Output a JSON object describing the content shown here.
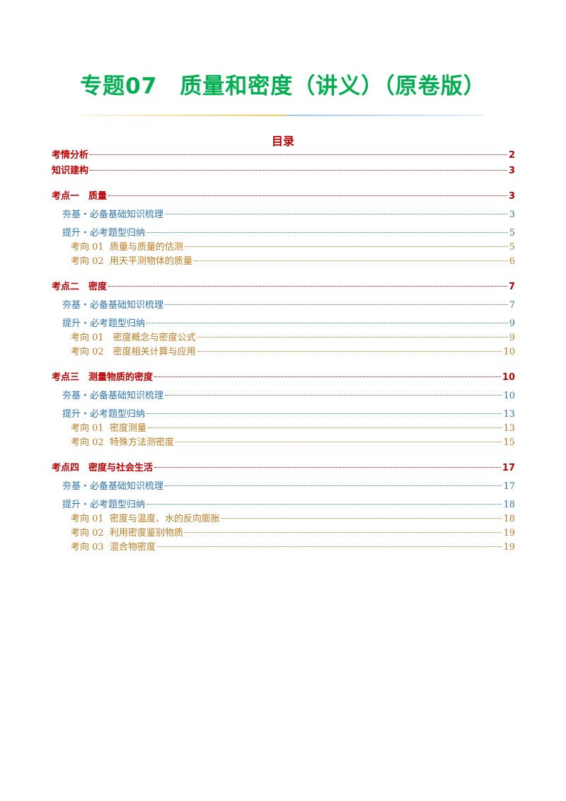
{
  "title": "专题07　质量和密度（讲义）（原卷版）",
  "toc": {
    "heading": "目录",
    "overview": [
      {
        "text": "考情分析",
        "page": "2"
      },
      {
        "text": "知识建构",
        "page": "3"
      }
    ],
    "sections": [
      {
        "text": "考点一　质量",
        "page": "3",
        "groups": [
          {
            "text": "夯基・必备基础知识梳理",
            "page": "3",
            "items": []
          },
          {
            "text": "提升・必考题型归纳",
            "page": "5",
            "items": [
              {
                "text": "考向 01  质量与质量的估测",
                "page": "5"
              },
              {
                "text": "考向 02  用天平测物体的质量",
                "page": "6"
              }
            ]
          }
        ]
      },
      {
        "text": "考点二　密度",
        "page": "7",
        "groups": [
          {
            "text": "夯基・必备基础知识梳理",
            "page": "7",
            "items": []
          },
          {
            "text": "提升・必考题型归纳",
            "page": "9",
            "items": [
              {
                "text": "考向 01　密度概念与密度公式",
                "page": "9"
              },
              {
                "text": "考向 02　密度相关计算与应用",
                "page": "10"
              }
            ]
          }
        ]
      },
      {
        "text": "考点三　测量物质的密度",
        "page": "10",
        "groups": [
          {
            "text": "夯基・必备基础知识梳理",
            "page": "10",
            "items": []
          },
          {
            "text": "提升・必考题型归纳",
            "page": "13",
            "items": [
              {
                "text": "考向 01  密度测量",
                "page": "13"
              },
              {
                "text": "考向 02  特殊方法测密度",
                "page": "15"
              }
            ]
          }
        ]
      },
      {
        "text": "考点四　密度与社会生活",
        "page": "17",
        "groups": [
          {
            "text": "夯基・必备基础知识梳理",
            "page": "17",
            "items": []
          },
          {
            "text": "提升・必考题型归纳",
            "page": "18",
            "items": [
              {
                "text": "考向 01  密度与温度、水的反向膨胀",
                "page": "18"
              },
              {
                "text": "考向 02  利用密度鉴别物质",
                "page": "19"
              },
              {
                "text": "考向 03  混合物密度",
                "page": "19"
              }
            ]
          }
        ]
      }
    ]
  }
}
